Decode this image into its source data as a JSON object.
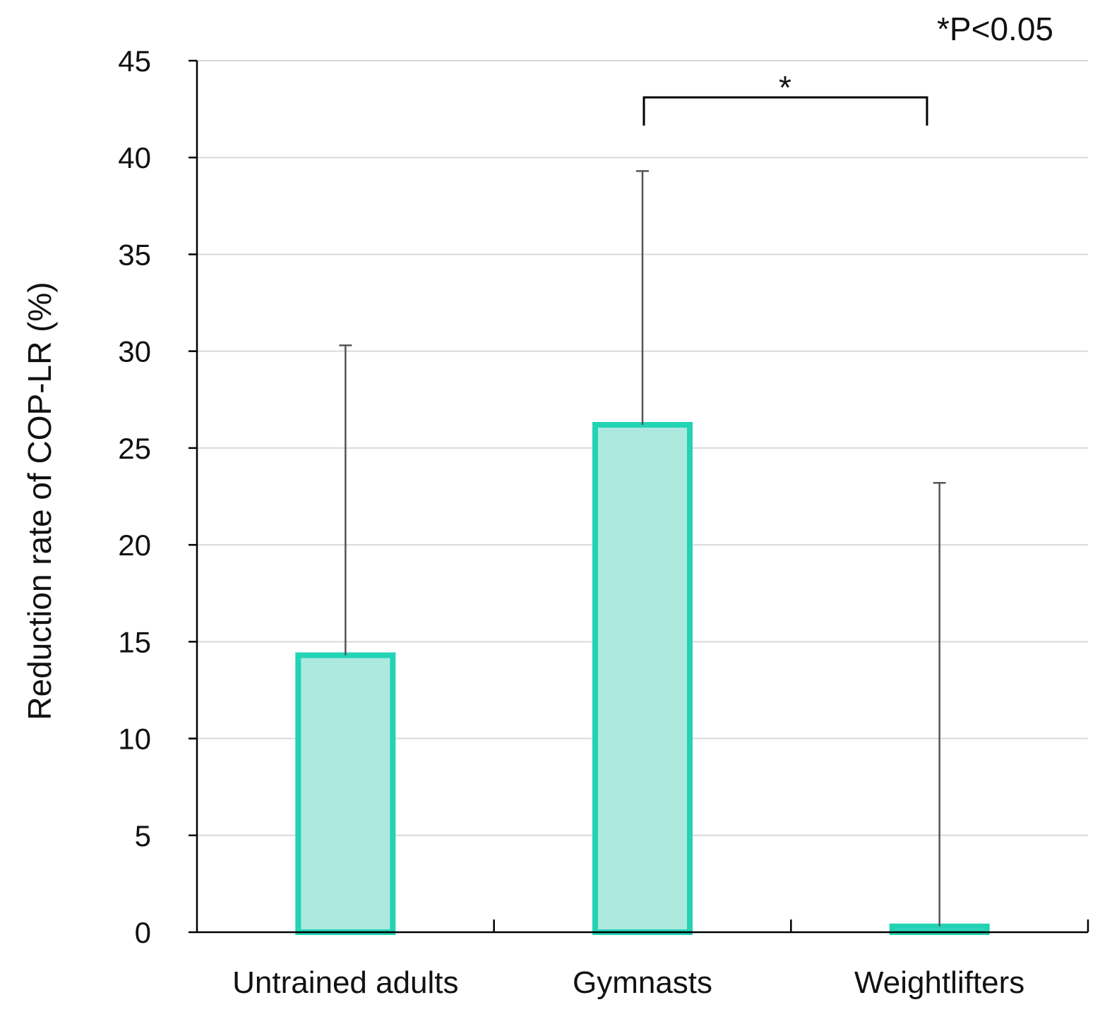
{
  "chart_data": {
    "type": "bar",
    "title": "",
    "xlabel": "",
    "ylabel": "Reduction rate of COP-LR (%)",
    "ylim": [
      0,
      45
    ],
    "yticks": [
      "0",
      "5",
      "10",
      "15",
      "20",
      "25",
      "30",
      "35",
      "40",
      "45"
    ],
    "ytick_values": [
      0,
      5,
      10,
      15,
      20,
      25,
      30,
      35,
      40,
      45
    ],
    "grid": true,
    "categories": [
      "Untrained adults",
      "Gymnasts",
      "Weightlifters"
    ],
    "values": [
      14.3,
      26.2,
      0.3
    ],
    "error_upper": [
      30.3,
      39.3,
      23.2
    ],
    "significance": {
      "between": [
        "Gymnasts",
        "Weightlifters"
      ],
      "marker": "*",
      "note": "*P<0.05"
    },
    "colors": {
      "bar_fill": "#aee9df",
      "bar_edge": "#22d3b4",
      "error_bar": "#555555",
      "grid": "#d9d9d9",
      "axis": "#000000"
    }
  }
}
